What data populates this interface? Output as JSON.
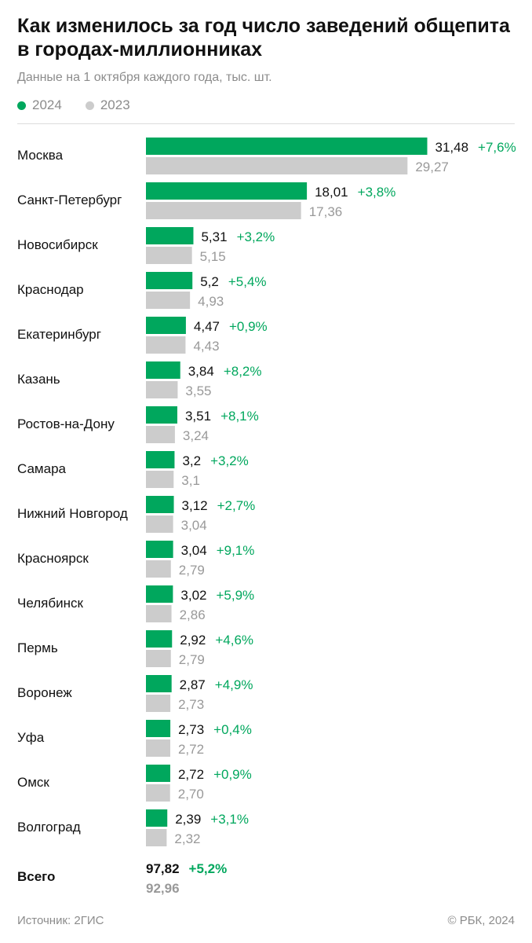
{
  "header": {
    "title": "Как изменилось за год число заведений общепита в городах-миллионниках",
    "subtitle": "Данные на 1 октября каждого года, тыс. шт."
  },
  "legend": [
    {
      "label": "2024",
      "color": "#00a75d"
    },
    {
      "label": "2023",
      "color": "#cccccc"
    }
  ],
  "footer": {
    "source": "Источник: 2ГИС",
    "copyright": "© РБК, 2024"
  },
  "chart_data": {
    "type": "bar",
    "orientation": "horizontal",
    "categories": [
      "Москва",
      "Санкт-Петербург",
      "Новосибирск",
      "Краснодар",
      "Екатеринбург",
      "Казань",
      "Ростов-на-Дону",
      "Самара",
      "Нижний Новгород",
      "Красноярск",
      "Челябинск",
      "Пермь",
      "Воронеж",
      "Уфа",
      "Омск",
      "Волгоград"
    ],
    "series": [
      {
        "name": "2024",
        "color": "#00a75d",
        "values": [
          31.48,
          18.01,
          5.31,
          5.2,
          4.47,
          3.84,
          3.51,
          3.2,
          3.12,
          3.04,
          3.02,
          2.92,
          2.87,
          2.73,
          2.72,
          2.39
        ],
        "labels": [
          "31,48",
          "18,01",
          "5,31",
          "5,2",
          "4,47",
          "3,84",
          "3,51",
          "3,2",
          "3,12",
          "3,04",
          "3,02",
          "2,92",
          "2,87",
          "2,73",
          "2,72",
          "2,39"
        ]
      },
      {
        "name": "2023",
        "color": "#cccccc",
        "values": [
          29.27,
          17.36,
          5.15,
          4.93,
          4.43,
          3.55,
          3.24,
          3.1,
          3.04,
          2.79,
          2.86,
          2.79,
          2.73,
          2.72,
          2.7,
          2.32
        ],
        "labels": [
          "29,27",
          "17,36",
          "5,15",
          "4,93",
          "4,43",
          "3,55",
          "3,24",
          "3,1",
          "3,04",
          "2,79",
          "2,86",
          "2,79",
          "2,73",
          "2,72",
          "2,70",
          "2,32"
        ]
      }
    ],
    "change_labels": [
      "+7,6%",
      "+3,8%",
      "+3,2%",
      "+5,4%",
      "+0,9%",
      "+8,2%",
      "+8,1%",
      "+3,2%",
      "+2,7%",
      "+9,1%",
      "+5,9%",
      "+4,6%",
      "+4,9%",
      "+0,4%",
      "+0,9%",
      "+3,1%"
    ],
    "total": {
      "label": "Всего",
      "value_2024": 97.82,
      "value_2023": 92.96,
      "label_2024": "97,82",
      "label_2023": "92,96",
      "change": "+5,2%"
    },
    "xlim": [
      0,
      31.48
    ],
    "grid": false,
    "legend_position": "top-left",
    "colors": {
      "bar_2024": "#00a75d",
      "bar_2023": "#cccccc",
      "change_text": "#00a75d",
      "value_2023_text": "#999999"
    }
  }
}
